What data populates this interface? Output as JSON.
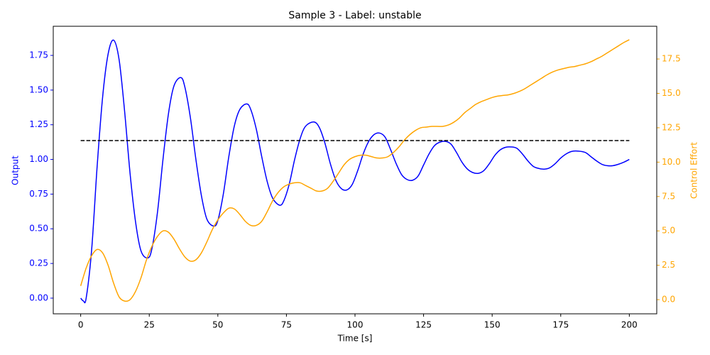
{
  "chart_data": {
    "type": "line",
    "title": "Sample 3 - Label: unstable",
    "xlabel": "Time [s]",
    "ylabel": "Output",
    "y2label": "Control Effort",
    "xlim": [
      -10,
      210
    ],
    "xticks": [
      0,
      25,
      50,
      75,
      100,
      125,
      150,
      175,
      200
    ],
    "ylim": [
      -0.113,
      1.96
    ],
    "yticks": [
      {
        "value": 0,
        "label": "0.00"
      },
      0.25,
      {
        "value": 0.5,
        "label": "0.50"
      },
      0.75,
      {
        "value": 1,
        "label": "1.00"
      },
      1.25,
      {
        "value": 1.5,
        "label": "1.50"
      },
      1.75
    ],
    "y2lim": [
      -1.03,
      19.88
    ],
    "y2ticks": [
      {
        "value": 0,
        "label": "0.0"
      },
      2.5,
      {
        "value": 5,
        "label": "5.0"
      },
      7.5,
      {
        "value": 10,
        "label": "10.0"
      },
      12.5,
      {
        "value": 15,
        "label": "15.0"
      },
      17.5
    ],
    "ycolor": "#0000ff",
    "y2color": "#ffa500",
    "reference": {
      "value": 1.136,
      "color": "#000000",
      "style": "dashed",
      "xrange": [
        0,
        200
      ]
    },
    "series": [
      {
        "color": "#0000ff",
        "x": [
          0,
          1,
          2,
          4,
          6,
          8,
          10,
          12,
          14,
          16,
          18,
          20,
          22,
          24.5,
          26,
          28,
          30,
          32,
          34,
          36.5,
          38,
          40,
          42,
          44,
          46,
          48.5,
          50,
          52,
          54,
          56,
          58,
          60.5,
          62,
          64,
          66,
          68,
          70,
          72.5,
          74,
          76,
          78,
          80,
          82,
          85,
          87,
          89,
          91,
          93,
          95,
          97,
          99,
          101,
          103,
          105,
          107,
          109,
          111,
          113,
          115,
          117,
          119,
          121,
          123,
          125,
          127,
          129,
          131,
          133,
          135,
          137,
          139,
          141,
          143,
          145,
          147,
          149,
          151,
          153,
          155,
          157,
          159,
          161,
          163,
          165,
          167,
          169,
          171,
          173,
          175,
          177,
          179,
          181.5,
          184,
          186,
          188,
          190,
          192,
          194,
          196,
          198,
          200
        ],
        "values": [
          0,
          -0.02,
          0.0,
          0.35,
          0.95,
          1.45,
          1.76,
          1.86,
          1.72,
          1.35,
          0.9,
          0.55,
          0.34,
          0.29,
          0.36,
          0.62,
          1.0,
          1.33,
          1.53,
          1.59,
          1.52,
          1.3,
          1.0,
          0.74,
          0.57,
          0.52,
          0.56,
          0.75,
          1.02,
          1.24,
          1.36,
          1.4,
          1.36,
          1.22,
          1.02,
          0.84,
          0.72,
          0.67,
          0.7,
          0.82,
          1.0,
          1.15,
          1.24,
          1.27,
          1.23,
          1.12,
          0.97,
          0.85,
          0.79,
          0.78,
          0.82,
          0.92,
          1.04,
          1.13,
          1.18,
          1.19,
          1.16,
          1.07,
          0.97,
          0.89,
          0.855,
          0.85,
          0.88,
          0.96,
          1.04,
          1.1,
          1.125,
          1.13,
          1.11,
          1.05,
          0.98,
          0.93,
          0.905,
          0.9,
          0.92,
          0.97,
          1.03,
          1.07,
          1.088,
          1.09,
          1.08,
          1.04,
          0.99,
          0.95,
          0.935,
          0.93,
          0.94,
          0.97,
          1.01,
          1.04,
          1.058,
          1.06,
          1.05,
          1.02,
          0.99,
          0.965,
          0.955,
          0.955,
          0.965,
          0.98,
          1.0
        ]
      },
      {
        "color": "#ffa500",
        "axis": "y2",
        "x": [
          0,
          2,
          4,
          6,
          8,
          10,
          12,
          14,
          16,
          18,
          20,
          22,
          24,
          26,
          28,
          30,
          32,
          34,
          36,
          38,
          40,
          42,
          44,
          46,
          48,
          50,
          52,
          54,
          56,
          58,
          60,
          62,
          64,
          66,
          68,
          70,
          72,
          74,
          76,
          78,
          80,
          82,
          84,
          86,
          88,
          90,
          92,
          94,
          96,
          98,
          100,
          102,
          104,
          106,
          108,
          110,
          112,
          114,
          116,
          118,
          120,
          122,
          124,
          126,
          128,
          130,
          132,
          134,
          136,
          138,
          140,
          142,
          144,
          146,
          148,
          150,
          152,
          154,
          156,
          158,
          160,
          162,
          164,
          166,
          168,
          170,
          172,
          174,
          176,
          178,
          180,
          182,
          184,
          186,
          188,
          190,
          192,
          194,
          196,
          198,
          200
        ],
        "values": [
          1.0,
          2.3,
          3.2,
          3.65,
          3.4,
          2.5,
          1.2,
          0.2,
          -0.1,
          0.0,
          0.6,
          1.6,
          2.9,
          3.9,
          4.6,
          5.0,
          4.9,
          4.4,
          3.7,
          3.1,
          2.8,
          2.9,
          3.4,
          4.2,
          5.1,
          5.8,
          6.3,
          6.65,
          6.6,
          6.2,
          5.7,
          5.4,
          5.4,
          5.7,
          6.4,
          7.2,
          7.8,
          8.2,
          8.4,
          8.5,
          8.5,
          8.3,
          8.1,
          7.9,
          7.9,
          8.1,
          8.6,
          9.2,
          9.8,
          10.2,
          10.4,
          10.5,
          10.5,
          10.4,
          10.3,
          10.3,
          10.4,
          10.7,
          11.1,
          11.6,
          12.0,
          12.3,
          12.5,
          12.55,
          12.6,
          12.6,
          12.6,
          12.7,
          12.9,
          13.2,
          13.6,
          13.9,
          14.2,
          14.4,
          14.55,
          14.7,
          14.8,
          14.85,
          14.9,
          15.0,
          15.15,
          15.35,
          15.6,
          15.85,
          16.1,
          16.35,
          16.55,
          16.7,
          16.8,
          16.9,
          16.95,
          17.05,
          17.15,
          17.3,
          17.5,
          17.7,
          17.95,
          18.2,
          18.45,
          18.7,
          18.9
        ]
      }
    ]
  }
}
